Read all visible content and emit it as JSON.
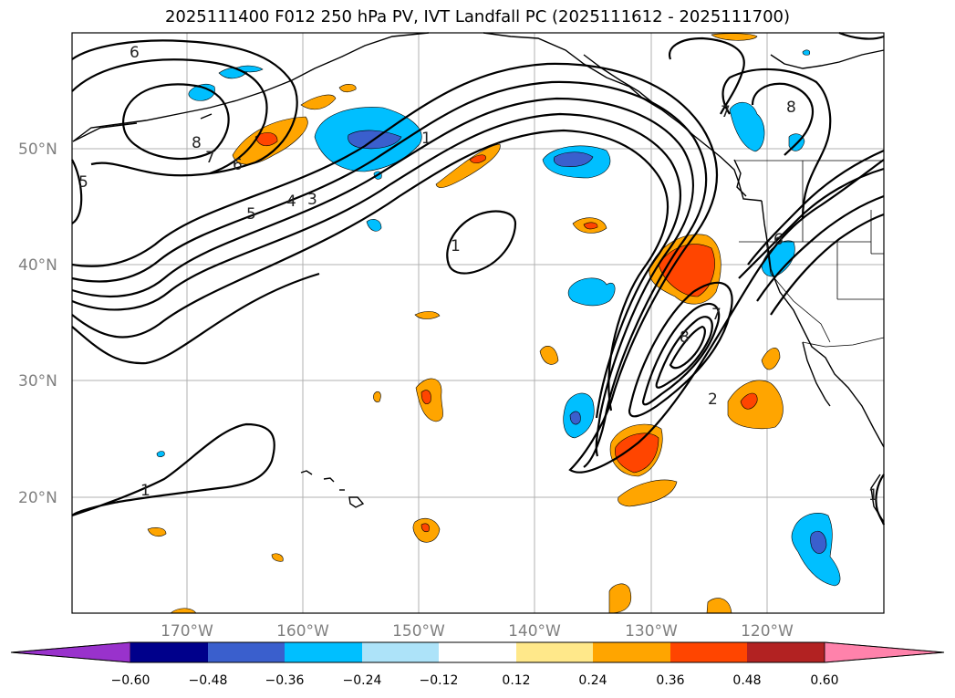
{
  "title": "2025111400 F012 250 hPa PV, IVT Landfall PC (2025111612 - 2025111700)",
  "lat_labels": [
    "50°N",
    "40°N",
    "30°N",
    "20°N"
  ],
  "lon_labels": [
    "170°W",
    "160°W",
    "150°W",
    "140°W",
    "130°W",
    "120°W"
  ],
  "contour_labels": [
    "6",
    "8",
    "7",
    "6",
    "5",
    "5",
    "4",
    "3",
    "1",
    "1",
    "8",
    "7",
    "2",
    "1",
    "8",
    "7",
    "6",
    "1"
  ],
  "colorbar": {
    "ticks": [
      "−0.60",
      "−0.48",
      "−0.36",
      "−0.24",
      "−0.12",
      "0.12",
      "0.24",
      "0.36",
      "0.48",
      "0.60"
    ],
    "colors": [
      "#9932CC",
      "#00008B",
      "#3A5FCD",
      "#00BFFF",
      "#ADE3F9",
      "#FFFFFF",
      "#FFE88A",
      "#FFA500",
      "#FF4500",
      "#B22222",
      "#FF82AB"
    ]
  }
}
